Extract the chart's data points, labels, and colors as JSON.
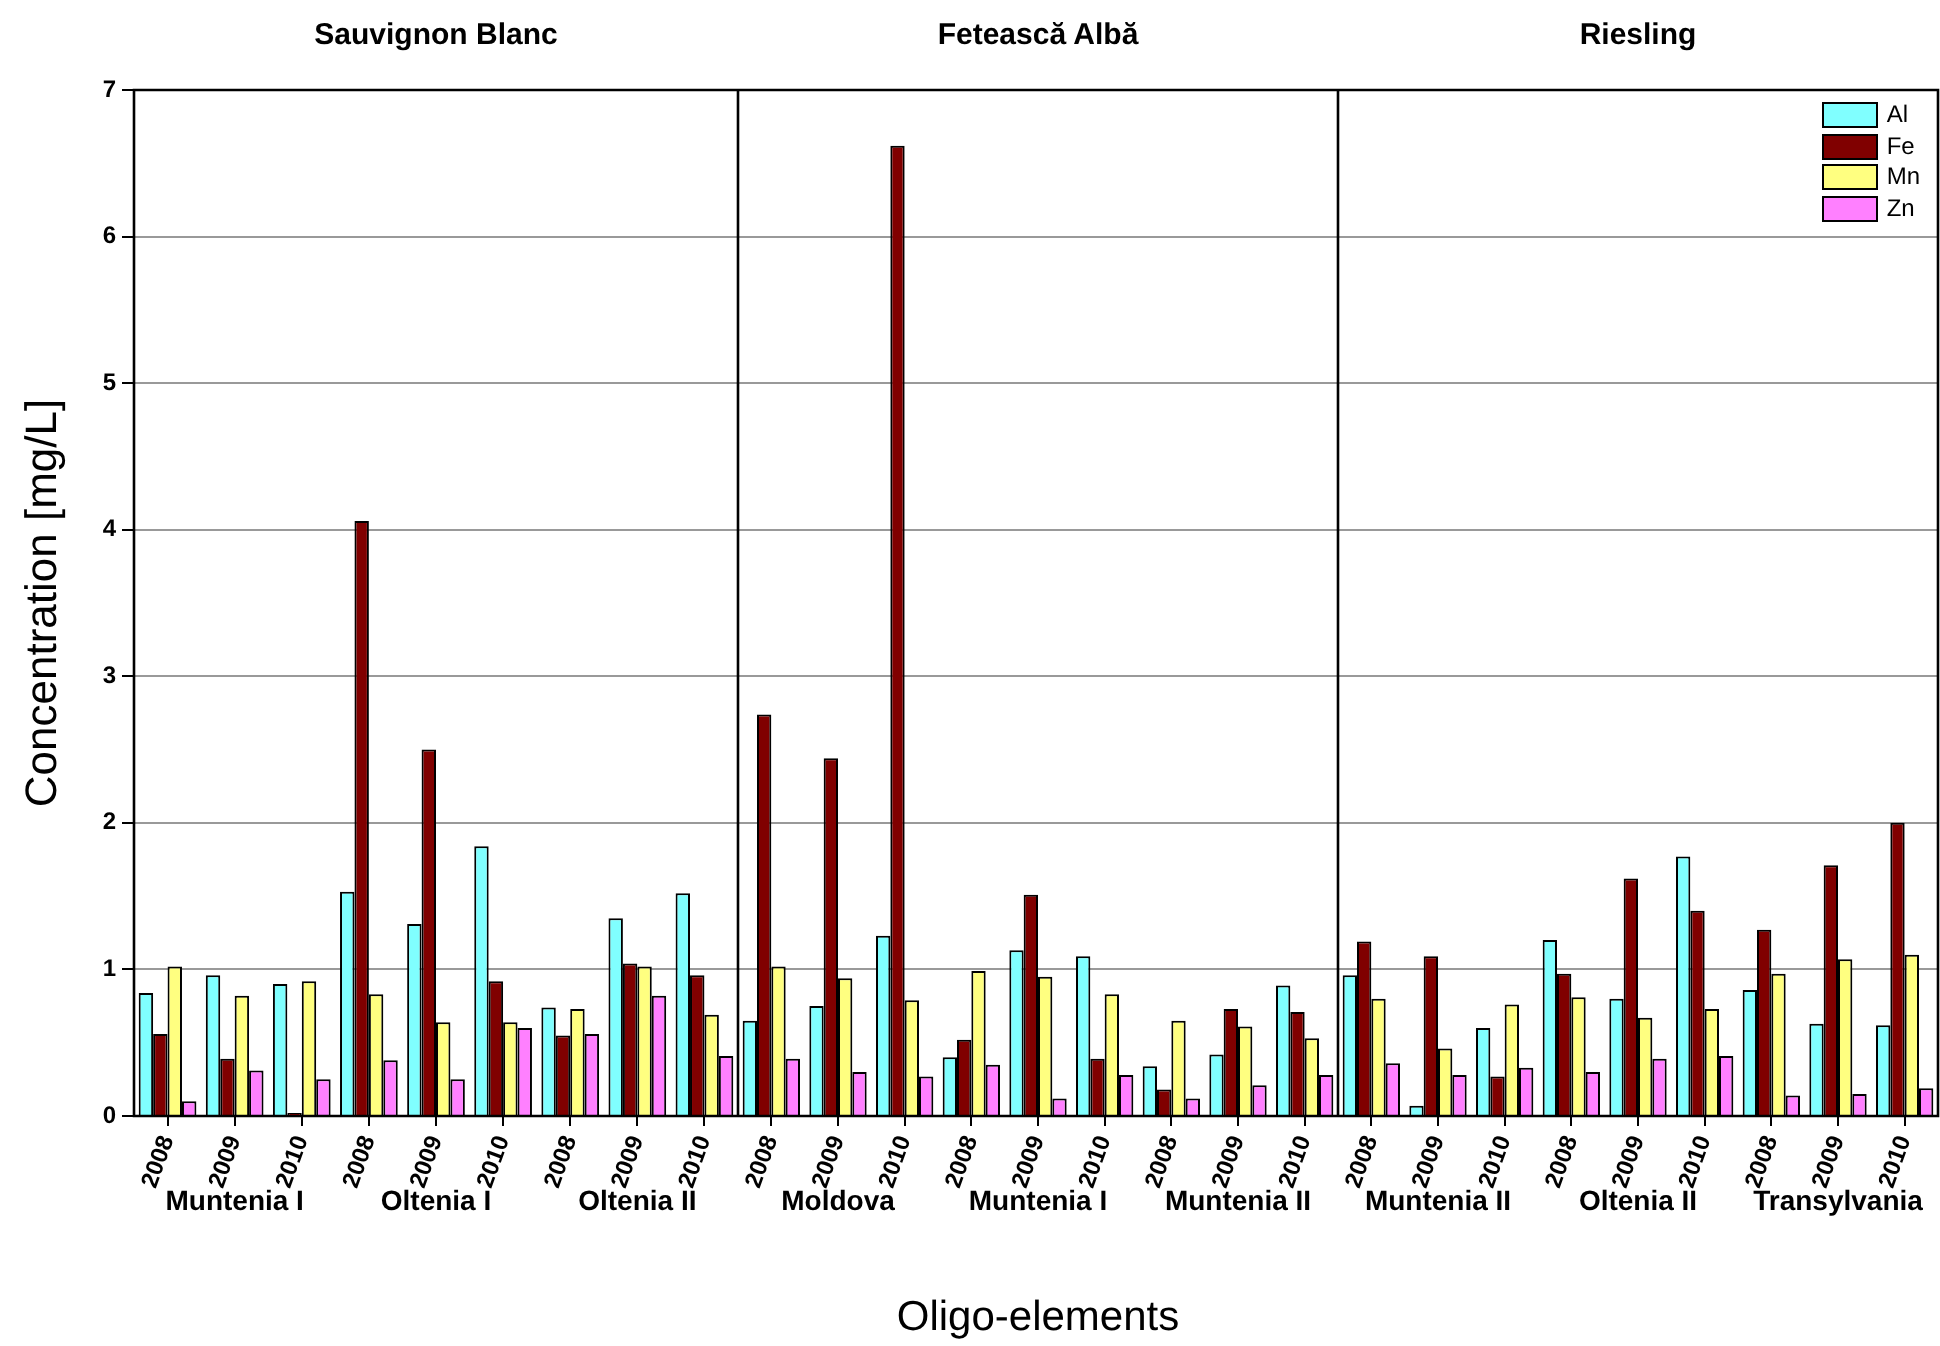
{
  "chart_data": [
    {
      "type": "bar",
      "title": "Sauvignon Blanc",
      "ylabel": "Concentration [mg/L]",
      "categories": [
        "2008",
        "2009",
        "2010",
        "2008",
        "2009",
        "2010",
        "2008",
        "2009",
        "2010"
      ],
      "annotations": [
        "Muntenia I",
        "Oltenia I",
        "Oltenia II"
      ],
      "ylim": [
        0,
        7
      ],
      "yticks": [
        0,
        1,
        2,
        3,
        4,
        5,
        6,
        7
      ],
      "grid": "y",
      "series": [
        {
          "color": "#80ffff",
          "values": [
            0.84,
            0.96,
            0.9,
            1.53,
            1.31,
            1.84,
            0.74,
            1.35,
            1.52
          ]
        },
        {
          "color": "#800000",
          "values": [
            0.56,
            0.39,
            0.02,
            4.06,
            2.5,
            0.92,
            0.55,
            1.04,
            0.96
          ]
        },
        {
          "color": "#ffff80",
          "values": [
            1.02,
            0.82,
            0.92,
            0.83,
            0.64,
            0.64,
            0.73,
            1.02,
            0.69
          ]
        },
        {
          "color": "#ff80ff",
          "values": [
            0.1,
            0.31,
            0.25,
            0.38,
            0.25,
            0.6,
            0.56,
            0.82,
            0.41
          ]
        }
      ]
    },
    {
      "type": "bar",
      "title": "Fetească Albă",
      "xlabel": "Oligo-elements",
      "categories": [
        "2008",
        "2009",
        "2010",
        "2008",
        "2009",
        "2010",
        "2008",
        "2009",
        "2010"
      ],
      "annotations": [
        "Moldova",
        "Muntenia I",
        "Muntenia II"
      ],
      "ylim": [
        0,
        7
      ],
      "yticks": [
        0,
        1,
        2,
        3,
        4,
        5,
        6,
        7
      ],
      "grid": "y",
      "tick_labels": "x",
      "series": [
        {
          "color": "#80ffff",
          "values": [
            0.65,
            0.75,
            1.23,
            0.4,
            1.13,
            1.09,
            0.34,
            0.42,
            0.89
          ]
        },
        {
          "color": "#800000",
          "values": [
            2.74,
            2.44,
            6.62,
            0.52,
            1.51,
            0.39,
            0.18,
            0.73,
            0.71
          ]
        },
        {
          "color": "#ffff80",
          "values": [
            1.02,
            0.94,
            0.79,
            0.99,
            0.95,
            0.83,
            0.65,
            0.61,
            0.53
          ]
        },
        {
          "color": "#ff80ff",
          "values": [
            0.39,
            0.3,
            0.27,
            0.35,
            0.12,
            0.28,
            0.12,
            0.21,
            0.28
          ]
        }
      ]
    },
    {
      "type": "bar",
      "title": "Riesling",
      "categories": [
        "2008",
        "2009",
        "2010",
        "2008",
        "2009",
        "2010",
        "2008",
        "2009",
        "2010"
      ],
      "annotations": [
        "Muntenia II",
        "Oltenia II",
        "Transylvania"
      ],
      "ylim": [
        0,
        7
      ],
      "yticks": [
        0,
        1,
        2,
        3,
        4,
        5,
        6,
        7
      ],
      "grid": "y",
      "tick_labels": "x",
      "legend": "top right",
      "series": [
        {
          "name": "Al",
          "color": "#80ffff",
          "values": [
            0.96,
            0.07,
            0.6,
            1.2,
            0.8,
            1.77,
            0.86,
            0.63,
            0.62
          ]
        },
        {
          "name": "Fe",
          "color": "#800000",
          "values": [
            1.19,
            1.09,
            0.27,
            0.97,
            1.62,
            1.4,
            1.27,
            1.71,
            2.0
          ]
        },
        {
          "name": "Mn",
          "color": "#ffff80",
          "values": [
            0.8,
            0.46,
            0.76,
            0.81,
            0.67,
            0.73,
            0.97,
            1.07,
            1.1
          ]
        },
        {
          "name": "Zn",
          "color": "#ff80ff",
          "values": [
            0.36,
            0.28,
            0.33,
            0.3,
            0.39,
            0.41,
            0.14,
            0.15,
            0.19
          ]
        }
      ]
    }
  ]
}
